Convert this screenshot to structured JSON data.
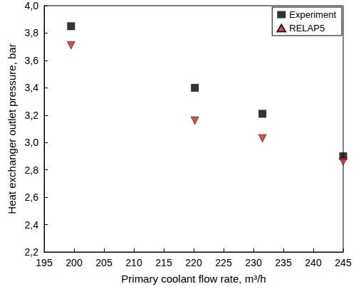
{
  "chart_data": {
    "type": "scatter",
    "xlabel": "Primary coolant flow rate, m³/h",
    "ylabel": "Heat exchanger outlet pressure, bar",
    "series": [
      {
        "name": "Experiment",
        "color": "#000000",
        "marker": "square",
        "x": [
          199.5,
          220.2,
          231.5,
          245.0
        ],
        "values": [
          3.85,
          3.4,
          3.21,
          2.9
        ]
      },
      {
        "name": "RELAP5",
        "color": "#cc2229",
        "marker": "triangle_down",
        "x": [
          199.5,
          220.2,
          231.5,
          245.0
        ],
        "values": [
          3.71,
          3.16,
          3.03,
          2.86
        ]
      }
    ],
    "xlim": [
      195,
      245
    ],
    "xticks": [
      195,
      200,
      205,
      210,
      215,
      220,
      225,
      230,
      235,
      240,
      245
    ],
    "ylim": [
      2.2,
      4.0
    ],
    "yticks": [
      {
        "value": 2.2,
        "label": "2,2"
      },
      {
        "value": 2.4,
        "label": "2,4"
      },
      {
        "value": 2.6,
        "label": "2,6"
      },
      {
        "value": 2.8,
        "label": "2,8"
      },
      {
        "value": 3.0,
        "label": "3,0"
      },
      {
        "value": 3.2,
        "label": "3,2"
      },
      {
        "value": 3.4,
        "label": "3,4"
      },
      {
        "value": 3.6,
        "label": "3,6"
      },
      {
        "value": 3.8,
        "label": "3,8"
      },
      {
        "value": 4.0,
        "label": "4,0"
      }
    ],
    "grid": false,
    "legend": "upper right"
  }
}
